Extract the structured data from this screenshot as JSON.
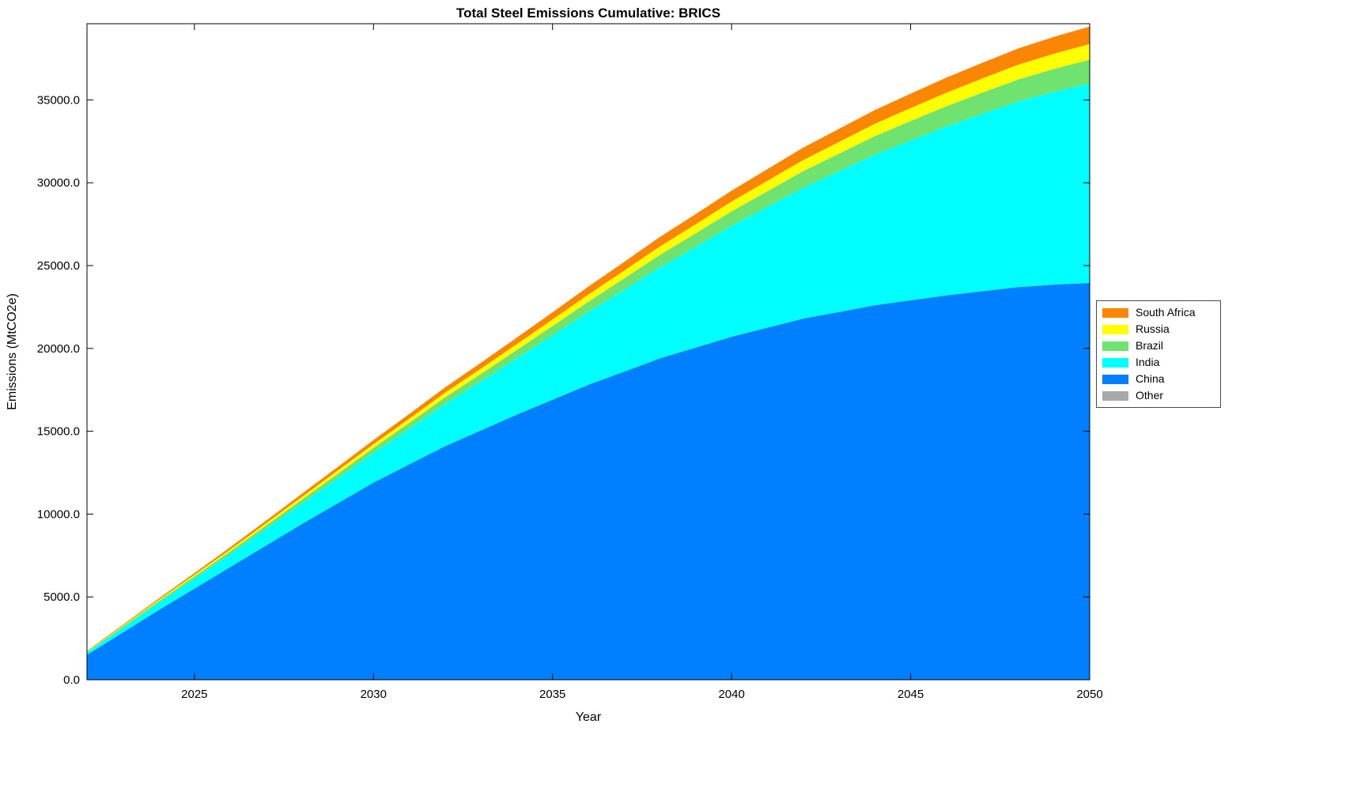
{
  "chart_data": {
    "type": "area",
    "stacked": true,
    "title": "Total Steel Emissions Cumulative: BRICS",
    "xlabel": "Year",
    "ylabel": "Emissions (MtCO2e)",
    "xlim": [
      2022,
      2050
    ],
    "ylim": [
      0,
      39600
    ],
    "grid": false,
    "x_ticks": [
      2025,
      2030,
      2035,
      2040,
      2045,
      2050
    ],
    "x_tick_labels": [
      "2025",
      "2030",
      "2035",
      "2040",
      "2045",
      "2050"
    ],
    "y_ticks": [
      0,
      5000,
      10000,
      15000,
      20000,
      25000,
      30000,
      35000
    ],
    "y_tick_labels": [
      "0.0",
      "5000.0",
      "10000.0",
      "15000.0",
      "20000.0",
      "25000.0",
      "30000.0",
      "35000.0"
    ],
    "x": [
      2022,
      2023,
      2024,
      2025,
      2026,
      2027,
      2028,
      2029,
      2030,
      2031,
      2032,
      2033,
      2034,
      2035,
      2036,
      2037,
      2038,
      2039,
      2040,
      2041,
      2042,
      2043,
      2044,
      2045,
      2046,
      2047,
      2048,
      2049,
      2050
    ],
    "series": [
      {
        "name": "Other",
        "color": "#a8a8a8",
        "values": [
          0,
          0,
          0,
          0,
          0,
          0,
          0,
          0,
          0,
          0,
          0,
          0,
          0,
          0,
          0,
          0,
          0,
          0,
          0,
          0,
          0,
          0,
          0,
          0,
          0,
          0,
          0,
          0,
          0
        ]
      },
      {
        "name": "China",
        "color": "#007fff",
        "values": [
          1500,
          2850,
          4200,
          5500,
          6800,
          8100,
          9400,
          10650,
          11900,
          13000,
          14100,
          15050,
          16000,
          16900,
          17800,
          18600,
          19400,
          20050,
          20700,
          21250,
          21800,
          22200,
          22600,
          22900,
          23200,
          23450,
          23700,
          23850,
          23950
        ]
      },
      {
        "name": "India",
        "color": "#00ffff",
        "values": [
          150,
          290,
          450,
          620,
          800,
          1020,
          1250,
          1520,
          1800,
          2160,
          2550,
          2960,
          3400,
          3890,
          4400,
          4940,
          5500,
          6090,
          6700,
          7300,
          7900,
          8500,
          9100,
          9660,
          10200,
          10710,
          11200,
          11640,
          12050
        ]
      },
      {
        "name": "Brazil",
        "color": "#6fe26f",
        "values": [
          40,
          67,
          95,
          122,
          150,
          185,
          220,
          260,
          300,
          347,
          395,
          447,
          500,
          560,
          620,
          685,
          750,
          812,
          875,
          937,
          1000,
          1057,
          1115,
          1167,
          1220,
          1275,
          1330,
          1380,
          1430
        ]
      },
      {
        "name": "Russia",
        "color": "#ffff00",
        "values": [
          30,
          50,
          70,
          92,
          115,
          140,
          165,
          192,
          220,
          252,
          285,
          320,
          355,
          392,
          430,
          470,
          510,
          550,
          590,
          630,
          670,
          707,
          745,
          782,
          820,
          854,
          888,
          919,
          950
        ]
      },
      {
        "name": "South Africa",
        "color": "#fb8604",
        "values": [
          35,
          57,
          80,
          105,
          130,
          157,
          185,
          217,
          250,
          285,
          320,
          357,
          395,
          437,
          480,
          525,
          570,
          615,
          660,
          705,
          750,
          790,
          830,
          870,
          910,
          947,
          985,
          1017,
          1050
        ]
      }
    ],
    "legend": {
      "position": "outside-right",
      "entries_top_to_bottom": [
        "South Africa",
        "Russia",
        "Brazil",
        "India",
        "China",
        "Other"
      ]
    }
  }
}
